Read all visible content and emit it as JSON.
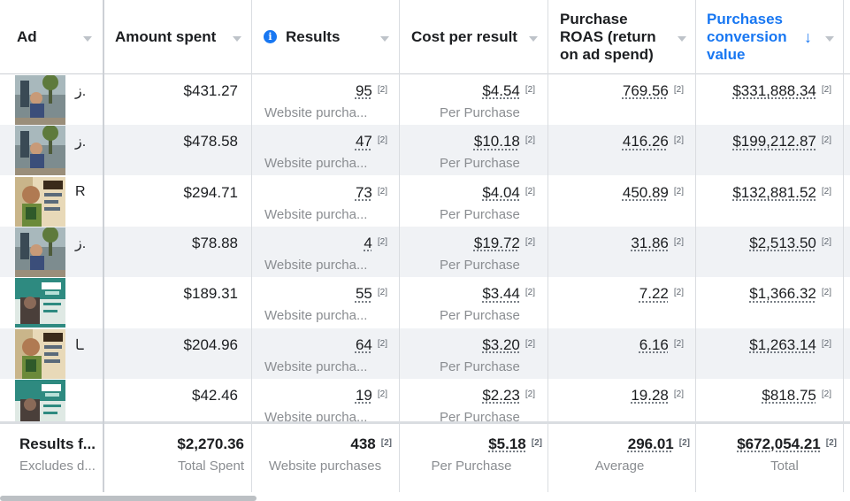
{
  "columns": {
    "ad": "Ad",
    "amount_spent": "Amount spent",
    "results": "Results",
    "cost_per_result": "Cost per result",
    "roas": "Purchase ROAS (return on ad spend)",
    "conversion_value": "Purchases conversion value"
  },
  "footnote_marker": "[2]",
  "rows": [
    {
      "ad_text": "ز.",
      "spent": "$431.27",
      "results": "95",
      "results_sub": "Website purcha...",
      "cpr": "$4.54",
      "cpr_sub": "Per Purchase",
      "roas": "769.56",
      "value": "$331,888.34"
    },
    {
      "ad_text": "ز.",
      "spent": "$478.58",
      "results": "47",
      "results_sub": "Website purcha...",
      "cpr": "$10.18",
      "cpr_sub": "Per Purchase",
      "roas": "416.26",
      "value": "$199,212.87"
    },
    {
      "ad_text": "R",
      "spent": "$294.71",
      "results": "73",
      "results_sub": "Website purcha...",
      "cpr": "$4.04",
      "cpr_sub": "Per Purchase",
      "roas": "450.89",
      "value": "$132,881.52"
    },
    {
      "ad_text": "ز.",
      "spent": "$78.88",
      "results": "4",
      "results_sub": "Website purcha...",
      "cpr": "$19.72",
      "cpr_sub": "Per Purchase",
      "roas": "31.86",
      "value": "$2,513.50"
    },
    {
      "ad_text": "",
      "spent": "$189.31",
      "results": "55",
      "results_sub": "Website purcha...",
      "cpr": "$3.44",
      "cpr_sub": "Per Purchase",
      "roas": "7.22",
      "value": "$1,366.32"
    },
    {
      "ad_text": "ـا",
      "spent": "$204.96",
      "results": "64",
      "results_sub": "Website purcha...",
      "cpr": "$3.20",
      "cpr_sub": "Per Purchase",
      "roas": "6.16",
      "value": "$1,263.14"
    },
    {
      "ad_text": "",
      "spent": "$42.46",
      "results": "19",
      "results_sub": "Website purcha...",
      "cpr": "$2.23",
      "cpr_sub": "Per Purchase",
      "roas": "19.28",
      "value": "$818.75"
    }
  ],
  "totals": {
    "label": "Results f...",
    "label_sub": "Excludes d...",
    "spent": "$2,270.36",
    "spent_sub": "Total Spent",
    "results": "438",
    "results_sub": "Website purchases",
    "cpr": "$5.18",
    "cpr_sub": "Per Purchase",
    "roas": "296.01",
    "roas_sub": "Average",
    "value": "$672,054.21",
    "value_sub": "Total"
  },
  "colors": {
    "accent": "#1877f2",
    "row_alt": "#f0f2f5",
    "muted": "#8a8d91"
  },
  "icons": {
    "info": "info-icon",
    "sort": "sort-down-arrow-icon",
    "menu": "chevron-down-icon"
  }
}
